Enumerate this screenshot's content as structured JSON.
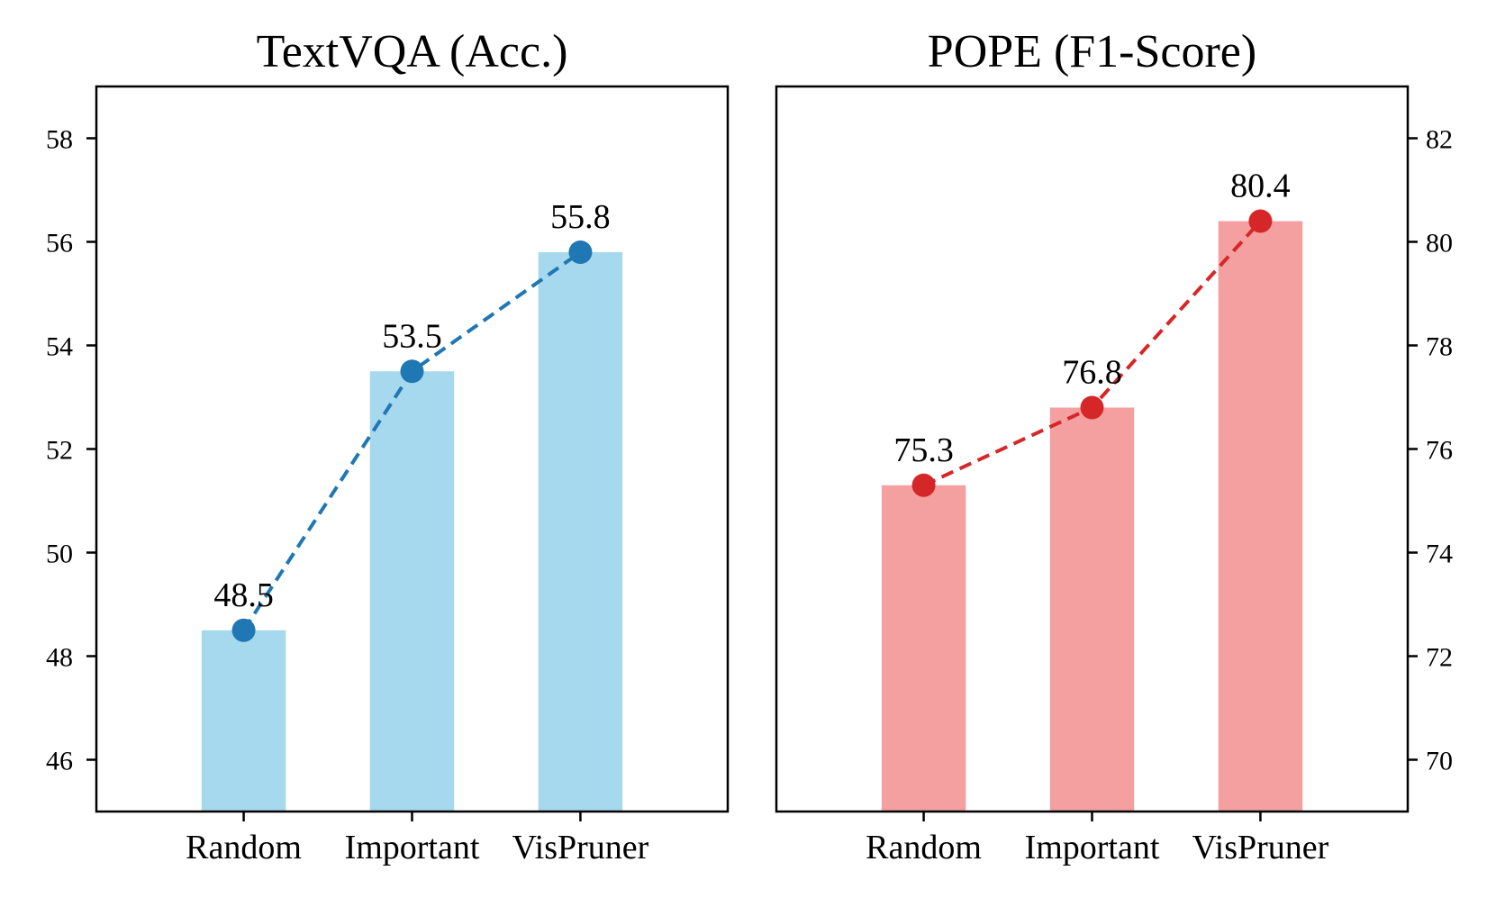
{
  "chart_data": [
    {
      "type": "bar",
      "title": "TextVQA (Acc.)",
      "xlabel": "",
      "ylabel": "",
      "categories": [
        "Random",
        "Important",
        "VisPruner"
      ],
      "values": [
        48.5,
        53.5,
        55.8
      ],
      "data_labels": [
        "48.5",
        "53.5",
        "55.8"
      ],
      "line_overlay": true,
      "line_style": "dashed",
      "ylim": [
        45,
        59
      ],
      "yticks": [
        46,
        48,
        50,
        52,
        54,
        56,
        58
      ],
      "ytick_labels": [
        "46",
        "48",
        "50",
        "52",
        "54",
        "56",
        "58"
      ],
      "y_axis_side": "left",
      "grid": false,
      "bar_color": "#a6d8ee",
      "line_color": "#1f77b4"
    },
    {
      "type": "bar",
      "title": "POPE (F1-Score)",
      "xlabel": "",
      "ylabel": "",
      "categories": [
        "Random",
        "Important",
        "VisPruner"
      ],
      "values": [
        75.3,
        76.8,
        80.4
      ],
      "data_labels": [
        "75.3",
        "76.8",
        "80.4"
      ],
      "line_overlay": true,
      "line_style": "dashed",
      "ylim": [
        69,
        83
      ],
      "yticks": [
        70,
        72,
        74,
        76,
        78,
        80,
        82
      ],
      "ytick_labels": [
        "70",
        "72",
        "74",
        "76",
        "78",
        "80",
        "82"
      ],
      "y_axis_side": "right",
      "grid": false,
      "bar_color": "#f4a0a0",
      "line_color": "#d62728"
    }
  ]
}
